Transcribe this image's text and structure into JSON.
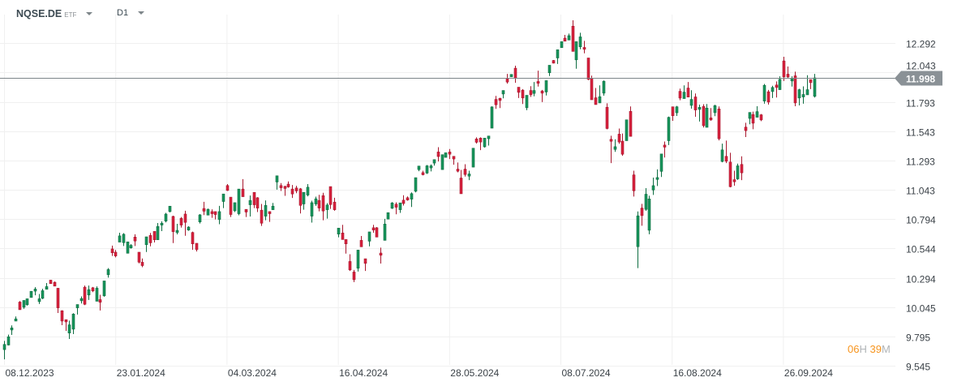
{
  "header": {
    "symbol": "NQSE.DE",
    "instrument_type": "ETF",
    "timeframe": "D1"
  },
  "timer": {
    "hours": "06",
    "hours_unit": "H",
    "minutes": "39",
    "minutes_unit": "M"
  },
  "colors": {
    "up": "#17955b",
    "up_border": "#0f6d42",
    "down": "#d7203c",
    "down_border": "#a8182e",
    "price_line": "#7d8589",
    "price_tag": "#8a9196",
    "grid": "#f0f0f0",
    "timer": "#f7941d"
  },
  "chart_data": {
    "type": "candlestick",
    "title": "",
    "ylim": [
      9.51,
      12.661
    ],
    "grid": true,
    "y_ticks": [
      "12.292",
      "12.043",
      "11.793",
      "11.543",
      "11.293",
      "11.043",
      "10.794",
      "10.544",
      "10.294",
      "10.045",
      "9.795",
      "9.545"
    ],
    "x_ticks": [
      "08.12.2023",
      "23.01.2024",
      "04.03.2024",
      "16.04.2024",
      "28.05.2024",
      "08.07.2024",
      "16.08.2024",
      "26.09.2024"
    ],
    "current_price": "11.998",
    "candles_ohlc": [
      [
        9.682,
        9.756,
        9.599,
        9.726
      ],
      [
        9.721,
        9.81,
        9.717,
        9.791
      ],
      [
        9.849,
        9.888,
        9.807,
        9.867
      ],
      [
        9.925,
        9.964,
        9.925,
        9.944
      ],
      [
        10.087,
        10.096,
        10.022,
        10.022
      ],
      [
        10.043,
        10.101,
        10.029,
        10.101
      ],
      [
        10.064,
        10.115,
        10.057,
        10.115
      ],
      [
        10.126,
        10.179,
        10.126,
        10.179
      ],
      [
        10.18,
        10.214,
        10.145,
        10.198
      ],
      [
        10.091,
        10.156,
        10.071,
        10.115
      ],
      [
        10.119,
        10.2,
        10.112,
        10.184
      ],
      [
        10.196,
        10.249,
        10.196,
        10.219
      ],
      [
        10.274,
        10.274,
        10.244,
        10.244
      ],
      [
        10.256,
        10.262,
        10.223,
        10.223
      ],
      [
        10.205,
        10.205,
        9.994,
        10.038
      ],
      [
        10.013,
        10.017,
        9.89,
        9.925
      ],
      [
        9.937,
        9.937,
        9.842,
        9.918
      ],
      [
        9.823,
        9.929,
        9.773,
        9.893
      ],
      [
        9.856,
        9.992,
        9.814,
        9.985
      ],
      [
        10.038,
        10.066,
        9.981,
        10.066
      ],
      [
        10.098,
        10.135,
        10.075,
        10.117
      ],
      [
        10.214,
        10.228,
        10.061,
        10.068
      ],
      [
        10.147,
        10.228,
        10.105,
        10.193
      ],
      [
        10.209,
        10.216,
        10.172,
        10.182
      ],
      [
        10.094,
        10.221,
        10.094,
        10.205
      ],
      [
        10.108,
        10.149,
        10.015,
        10.085
      ],
      [
        10.14,
        10.267,
        10.133,
        10.267
      ],
      [
        10.32,
        10.376,
        10.295,
        10.364
      ],
      [
        10.54,
        10.568,
        10.48,
        10.507
      ],
      [
        10.512,
        10.531,
        10.468,
        10.48
      ],
      [
        10.598,
        10.678,
        10.598,
        10.651
      ],
      [
        10.593,
        10.674,
        10.565,
        10.665
      ],
      [
        10.503,
        10.6,
        10.503,
        10.6
      ],
      [
        10.549,
        10.581,
        10.542,
        10.57
      ],
      [
        10.641,
        10.665,
        10.565,
        10.607
      ],
      [
        10.512,
        10.512,
        10.417,
        10.427
      ],
      [
        10.426,
        10.458,
        10.384,
        10.398
      ],
      [
        10.576,
        10.643,
        10.514,
        10.643
      ],
      [
        10.655,
        10.676,
        10.562,
        10.592
      ],
      [
        10.689,
        10.689,
        10.595,
        10.618
      ],
      [
        10.618,
        10.761,
        10.618,
        10.731
      ],
      [
        10.743,
        10.775,
        10.692,
        10.759
      ],
      [
        10.777,
        10.847,
        10.766,
        10.837
      ],
      [
        10.858,
        10.904,
        10.851,
        10.904
      ],
      [
        10.817,
        10.823,
        10.59,
        10.687
      ],
      [
        10.68,
        10.754,
        10.664,
        10.698
      ],
      [
        10.8,
        10.812,
        10.722,
        10.743
      ],
      [
        10.837,
        10.865,
        10.652,
        10.766
      ],
      [
        10.701,
        10.733,
        10.694,
        10.726
      ],
      [
        10.68,
        10.687,
        10.532,
        10.583
      ],
      [
        10.588,
        10.588,
        10.518,
        10.535
      ],
      [
        10.77,
        10.837,
        10.756,
        10.83
      ],
      [
        10.884,
        10.941,
        10.828,
        10.861
      ],
      [
        10.828,
        10.884,
        10.828,
        10.877
      ],
      [
        10.858,
        10.877,
        10.805,
        10.84
      ],
      [
        10.858,
        10.858,
        10.791,
        10.833
      ],
      [
        10.791,
        10.907,
        10.75,
        10.858
      ],
      [
        10.944,
        11.008,
        10.888,
        11.008
      ],
      [
        11.08,
        11.092,
        11.034,
        11.038
      ],
      [
        10.981,
        10.981,
        10.812,
        10.833
      ],
      [
        10.865,
        10.934,
        10.854,
        10.934
      ],
      [
        10.84,
        11.05,
        10.826,
        11.05
      ],
      [
        11.05,
        11.135,
        10.985,
        10.985
      ],
      [
        10.877,
        10.877,
        10.812,
        10.854
      ],
      [
        10.916,
        10.995,
        10.816,
        10.953
      ],
      [
        11.022,
        11.022,
        10.888,
        10.916
      ],
      [
        10.976,
        10.981,
        10.854,
        10.888
      ],
      [
        10.87,
        10.923,
        10.736,
        10.759
      ],
      [
        10.819,
        10.953,
        10.784,
        10.911
      ],
      [
        10.858,
        10.858,
        10.77,
        10.84
      ],
      [
        10.874,
        10.932,
        10.874,
        10.904
      ],
      [
        11.11,
        11.163,
        11.045,
        11.163
      ],
      [
        11.08,
        11.101,
        11.034,
        11.061
      ],
      [
        11.073,
        11.078,
        10.992,
        11.055
      ],
      [
        11.092,
        11.115,
        11.061,
        11.068
      ],
      [
        11.05,
        11.085,
        10.974,
        11.008
      ],
      [
        11.059,
        11.078,
        11.015,
        11.034
      ],
      [
        11.052,
        11.059,
        10.842,
        10.911
      ],
      [
        10.923,
        11.022,
        10.874,
        11.022
      ],
      [
        10.999,
        11.092,
        10.988,
        11.066
      ],
      [
        10.819,
        10.951,
        10.764,
        10.934
      ],
      [
        10.923,
        10.985,
        10.907,
        10.967
      ],
      [
        10.953,
        11.001,
        10.86,
        10.888
      ],
      [
        10.994,
        11.018,
        10.784,
        10.863
      ],
      [
        10.874,
        10.93,
        10.798,
        10.914
      ],
      [
        11.071,
        11.071,
        10.881,
        10.918
      ],
      [
        10.939,
        10.976,
        10.865,
        10.874
      ],
      [
        10.666,
        10.717,
        10.639,
        10.717
      ],
      [
        10.676,
        10.745,
        10.62,
        10.62
      ],
      [
        10.62,
        10.62,
        10.5,
        10.583
      ],
      [
        10.433,
        10.495,
        10.352,
        10.361
      ],
      [
        10.343,
        10.361,
        10.257,
        10.278
      ],
      [
        10.375,
        10.53,
        10.347,
        10.53
      ],
      [
        10.613,
        10.65,
        10.558,
        10.558
      ],
      [
        10.456,
        10.456,
        10.352,
        10.417
      ],
      [
        10.606,
        10.685,
        10.562,
        10.685
      ],
      [
        10.72,
        10.745,
        10.678,
        10.701
      ],
      [
        10.72,
        10.726,
        10.641,
        10.641
      ],
      [
        10.505,
        10.551,
        10.415,
        10.486
      ],
      [
        10.613,
        10.796,
        10.613,
        10.752
      ],
      [
        10.794,
        10.849,
        10.794,
        10.849
      ],
      [
        10.886,
        10.939,
        10.881,
        10.932
      ],
      [
        10.921,
        10.937,
        10.835,
        10.895
      ],
      [
        10.874,
        10.932,
        10.847,
        10.932
      ],
      [
        10.955,
        10.997,
        10.909,
        10.927
      ],
      [
        10.976,
        10.987,
        10.951,
        10.957
      ],
      [
        10.964,
        11.022,
        10.897,
        11.011
      ],
      [
        11.031,
        11.147,
        11.022,
        11.147
      ],
      [
        11.216,
        11.246,
        11.202,
        11.246
      ],
      [
        11.19,
        11.206,
        11.167,
        11.172
      ],
      [
        11.186,
        11.255,
        11.179,
        11.248
      ],
      [
        11.23,
        11.26,
        11.2,
        11.248
      ],
      [
        11.271,
        11.301,
        11.25,
        11.301
      ],
      [
        11.366,
        11.407,
        11.285,
        11.327
      ],
      [
        11.216,
        11.343,
        11.216,
        11.343
      ],
      [
        11.32,
        11.359,
        11.32,
        11.359
      ],
      [
        11.366,
        11.391,
        11.306,
        11.347
      ],
      [
        11.329,
        11.329,
        11.257,
        11.306
      ],
      [
        11.22,
        11.276,
        11.193,
        11.202
      ],
      [
        11.144,
        11.213,
        11.01,
        11.01
      ],
      [
        11.22,
        11.262,
        11.156,
        11.174
      ],
      [
        11.16,
        11.206,
        11.126,
        11.179
      ],
      [
        11.237,
        11.398,
        11.237,
        11.398
      ],
      [
        11.477,
        11.491,
        11.438,
        11.449
      ],
      [
        11.484,
        11.491,
        11.382,
        11.451
      ],
      [
        11.41,
        11.484,
        11.403,
        11.484
      ],
      [
        11.479,
        11.502,
        11.421,
        11.502
      ],
      [
        11.569,
        11.755,
        11.569,
        11.75
      ],
      [
        11.814,
        11.844,
        11.733,
        11.768
      ],
      [
        11.823,
        11.828,
        11.74,
        11.805
      ],
      [
        11.86,
        11.89,
        11.823,
        11.89
      ],
      [
        11.99,
        12.031,
        11.948,
        11.962
      ],
      [
        12.006,
        12.027,
        12.006,
        12.027
      ],
      [
        12.08,
        12.101,
        11.955,
        11.994
      ],
      [
        11.918,
        11.918,
        11.826,
        11.874
      ],
      [
        11.893,
        11.902,
        11.775,
        11.826
      ],
      [
        11.743,
        11.849,
        11.722,
        11.849
      ],
      [
        11.89,
        11.927,
        11.835,
        11.854
      ],
      [
        11.865,
        11.962,
        11.84,
        11.89
      ],
      [
        11.967,
        12.059,
        11.923,
        11.951
      ],
      [
        11.886,
        11.895,
        11.791,
        11.867
      ],
      [
        11.877,
        11.974,
        11.847,
        11.974
      ],
      [
        12.041,
        12.105,
        12.013,
        12.105
      ],
      [
        12.146,
        12.15,
        12.12,
        12.123
      ],
      [
        12.167,
        12.237,
        12.116,
        12.237
      ],
      [
        12.255,
        12.306,
        12.255,
        12.306
      ],
      [
        12.336,
        12.364,
        12.31,
        12.31
      ],
      [
        12.32,
        12.375,
        12.32,
        12.357
      ],
      [
        12.438,
        12.488,
        12.223,
        12.223
      ],
      [
        12.151,
        12.306,
        12.075,
        12.306
      ],
      [
        12.262,
        12.382,
        12.241,
        12.347
      ],
      [
        12.257,
        12.313,
        12.207,
        12.241
      ],
      [
        12.167,
        12.167,
        11.978,
        11.985
      ],
      [
        11.992,
        12.017,
        11.811,
        11.811
      ],
      [
        11.828,
        11.911,
        11.77,
        11.77
      ],
      [
        11.784,
        11.934,
        11.784,
        11.837
      ],
      [
        11.867,
        11.975,
        11.846,
        11.969
      ],
      [
        11.747,
        11.781,
        11.559,
        11.566
      ],
      [
        11.474,
        11.504,
        11.271,
        11.457
      ],
      [
        11.388,
        11.474,
        11.367,
        11.411
      ],
      [
        11.518,
        11.566,
        11.435,
        11.451
      ],
      [
        11.458,
        11.523,
        11.333,
        11.347
      ],
      [
        11.462,
        11.64,
        11.462,
        11.64
      ],
      [
        11.712,
        11.754,
        11.499,
        11.499
      ],
      [
        11.171,
        11.206,
        10.986,
        11.035
      ],
      [
        10.559,
        10.859,
        10.376,
        10.822
      ],
      [
        10.888,
        10.924,
        10.737,
        10.824
      ],
      [
        10.877,
        11.058,
        10.864,
        11.006
      ],
      [
        10.699,
        10.993,
        10.665,
        10.966
      ],
      [
        11.042,
        11.148,
        11.0,
        11.079
      ],
      [
        11.132,
        11.218,
        11.076,
        11.148
      ],
      [
        11.201,
        11.349,
        11.153,
        11.349
      ],
      [
        11.425,
        11.455,
        11.319,
        11.407
      ],
      [
        11.462,
        11.668,
        11.425,
        11.661
      ],
      [
        11.751,
        11.751,
        11.631,
        11.675
      ],
      [
        11.7,
        11.758,
        11.673,
        11.751
      ],
      [
        11.883,
        11.906,
        11.807,
        11.825
      ],
      [
        11.821,
        11.934,
        11.821,
        11.876
      ],
      [
        11.911,
        11.962,
        11.834,
        11.834
      ],
      [
        11.763,
        11.892,
        11.735,
        11.814
      ],
      [
        11.835,
        11.865,
        11.666,
        11.724
      ],
      [
        11.729,
        11.77,
        11.625,
        11.747
      ],
      [
        11.754,
        11.773,
        11.574,
        11.59
      ],
      [
        11.576,
        11.775,
        11.576,
        11.74
      ],
      [
        11.657,
        11.74,
        11.632,
        11.639
      ],
      [
        11.701,
        11.768,
        11.671,
        11.761
      ],
      [
        11.733,
        11.754,
        11.465,
        11.479
      ],
      [
        11.285,
        11.437,
        11.278,
        11.384
      ],
      [
        11.329,
        11.463,
        11.271,
        11.287
      ],
      [
        11.28,
        11.359,
        11.065,
        11.07
      ],
      [
        11.13,
        11.206,
        11.079,
        11.112
      ],
      [
        11.137,
        11.267,
        11.128,
        11.248
      ],
      [
        11.26,
        11.329,
        11.126,
        11.188
      ],
      [
        11.578,
        11.615,
        11.493,
        11.548
      ],
      [
        11.652,
        11.703,
        11.602,
        11.703
      ],
      [
        11.685,
        11.71,
        11.56,
        11.611
      ],
      [
        11.662,
        11.756,
        11.662,
        11.71
      ],
      [
        11.683,
        11.689,
        11.629,
        11.639
      ],
      [
        11.8,
        11.946,
        11.777,
        11.934
      ],
      [
        11.879,
        11.895,
        11.77,
        11.791
      ],
      [
        11.881,
        11.93,
        11.826,
        11.916
      ],
      [
        11.937,
        11.967,
        11.83,
        11.916
      ],
      [
        11.897,
        12.011,
        11.897,
        11.985
      ],
      [
        12.142,
        12.177,
        11.971,
        12.006
      ],
      [
        12.029,
        12.094,
        11.997,
        12.006
      ],
      [
        11.971,
        12.011,
        11.923,
        11.994
      ],
      [
        12.015,
        12.05,
        11.756,
        11.784
      ],
      [
        11.826,
        11.904,
        11.763,
        11.897
      ],
      [
        11.835,
        11.925,
        11.777,
        11.856
      ],
      [
        11.853,
        12.02,
        11.853,
        11.897
      ],
      [
        11.983,
        11.983,
        11.902,
        11.957
      ],
      [
        11.84,
        12.031,
        11.83,
        11.998
      ]
    ]
  }
}
